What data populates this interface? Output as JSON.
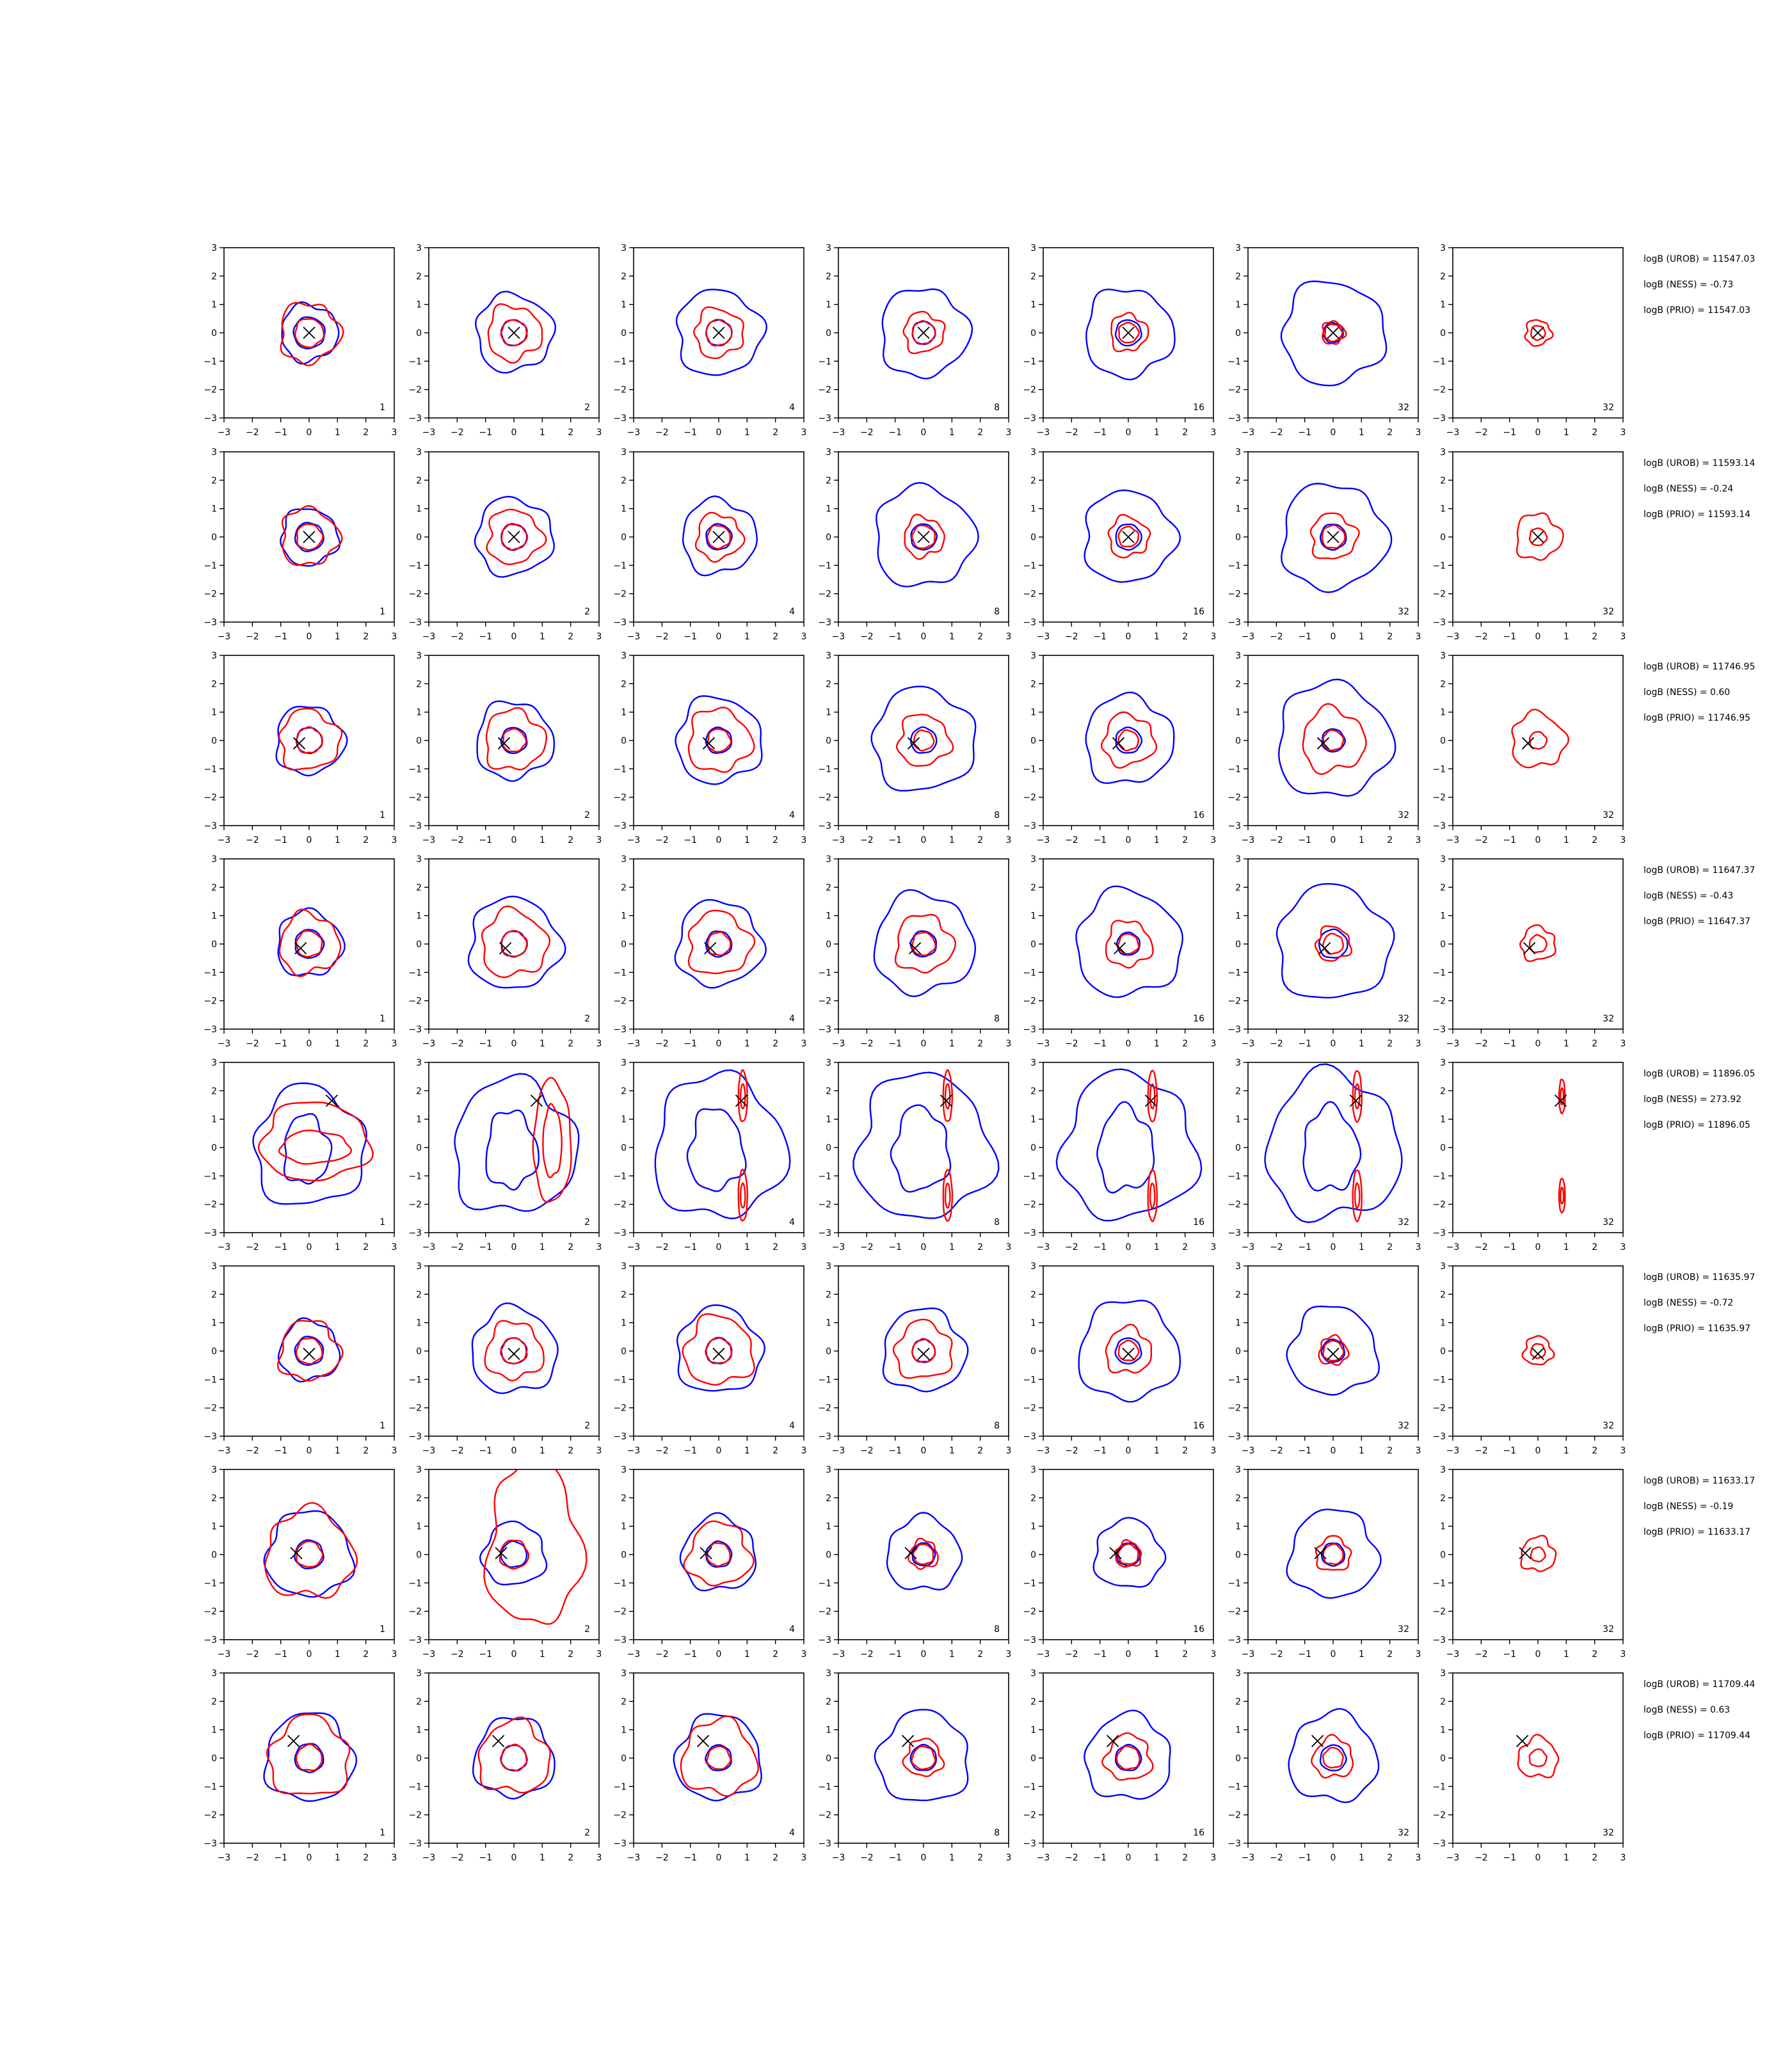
{
  "chart_data": {
    "type": "contour-grid",
    "xlim": [
      -3,
      3
    ],
    "ylim": [
      -3,
      3
    ],
    "ticks": [
      "−3",
      "−2",
      "−1",
      "0",
      "1",
      "2",
      "3"
    ],
    "tick_values": [
      -3,
      -2,
      -1,
      0,
      1,
      2,
      3
    ],
    "columns": [
      {
        "label": "1",
        "series": "blue-red"
      },
      {
        "label": "2",
        "series": "blue-red"
      },
      {
        "label": "4",
        "series": "blue-red"
      },
      {
        "label": "8",
        "series": "blue-red"
      },
      {
        "label": "16",
        "series": "blue-red"
      },
      {
        "label": "32",
        "series": "blue-red"
      },
      {
        "label": "32",
        "series": "red"
      }
    ],
    "colors": {
      "outer_contour": "#0000ff",
      "inner_contour": "#ff0000",
      "marker": "#000000"
    },
    "rows": [
      {
        "marker": [
          0,
          0
        ],
        "annotations": [
          "logB (UROB) = 11547.03",
          "logB (NESS) = -0.73",
          "logB (PRIO) = 11547.03"
        ],
        "cells": [
          {
            "blue": [
              1.0,
              0.55
            ],
            "red": [
              1.05,
              0.5
            ]
          },
          {
            "blue": [
              1.35,
              0.45
            ],
            "red": [
              0.95,
              0.45
            ]
          },
          {
            "blue": [
              1.5,
              0.45
            ],
            "red": [
              0.85,
              0.45
            ]
          },
          {
            "blue": [
              1.55,
              0.4
            ],
            "red": [
              0.7,
              0.4
            ]
          },
          {
            "blue": [
              1.55,
              0.45
            ],
            "red": [
              0.65,
              0.35
            ]
          },
          {
            "blue": [
              1.8,
              0.35
            ],
            "red": [
              0.4,
              0.3
            ]
          },
          {
            "red": [
              0.45,
              0.25
            ]
          }
        ]
      },
      {
        "marker": [
          0,
          0
        ],
        "annotations": [
          "logB (UROB) = 11593.14",
          "logB (NESS) = -0.24",
          "logB (PRIO) = 11593.14"
        ],
        "cells": [
          {
            "blue": [
              1.0,
              0.5
            ],
            "red": [
              1.0,
              0.45
            ]
          },
          {
            "blue": [
              1.35,
              0.45
            ],
            "red": [
              0.95,
              0.45
            ]
          },
          {
            "blue": [
              1.3,
              0.45
            ],
            "red": [
              0.8,
              0.4
            ]
          },
          {
            "blue": [
              1.75,
              0.45
            ],
            "red": [
              0.7,
              0.4
            ]
          },
          {
            "blue": [
              1.6,
              0.45
            ],
            "red": [
              0.7,
              0.35
            ]
          },
          {
            "blue": [
              1.85,
              0.45
            ],
            "red": [
              0.8,
              0.4
            ]
          },
          {
            "red": [
              0.8,
              0.3
            ]
          }
        ]
      },
      {
        "marker": [
          -0.35,
          -0.1
        ],
        "annotations": [
          "logB (UROB) = 11746.95",
          "logB (NESS) = 0.60",
          "logB (PRIO) = 11746.95"
        ],
        "cells": [
          {
            "blue": [
              1.2,
              0.45
            ],
            "red": [
              1.05,
              0.45
            ]
          },
          {
            "blue": [
              1.35,
              0.45
            ],
            "red": [
              1.05,
              0.4
            ]
          },
          {
            "blue": [
              1.5,
              0.45
            ],
            "red": [
              1.1,
              0.4
            ]
          },
          {
            "blue": [
              1.8,
              0.45
            ],
            "red": [
              0.9,
              0.35
            ]
          },
          {
            "blue": [
              1.55,
              0.45
            ],
            "red": [
              0.9,
              0.35
            ]
          },
          {
            "blue": [
              2.0,
              0.4
            ],
            "red": [
              1.1,
              0.35
            ]
          },
          {
            "red": [
              0.95,
              0.3
            ]
          }
        ]
      },
      {
        "marker": [
          -0.3,
          -0.15
        ],
        "annotations": [
          "logB (UROB) = 11647.37",
          "logB (NESS) = -0.43",
          "logB (PRIO) = 11647.37"
        ],
        "cells": [
          {
            "blue": [
              1.15,
              0.5
            ],
            "red": [
              1.05,
              0.45
            ]
          },
          {
            "blue": [
              1.6,
              0.45
            ],
            "red": [
              1.15,
              0.45
            ]
          },
          {
            "blue": [
              1.5,
              0.45
            ],
            "red": [
              1.1,
              0.4
            ]
          },
          {
            "blue": [
              1.75,
              0.45
            ],
            "red": [
              1.0,
              0.4
            ]
          },
          {
            "blue": [
              1.85,
              0.4
            ],
            "red": [
              0.8,
              0.35
            ]
          },
          {
            "blue": [
              2.0,
              0.5
            ],
            "red": [
              0.6,
              0.35
            ]
          },
          {
            "red": [
              0.6,
              0.3
            ]
          }
        ]
      },
      {
        "marker": [
          0.8,
          1.65
        ],
        "annotations": [
          "logB (UROB) = 11896.05",
          "logB (NESS) = 273.92",
          "logB (PRIO) = 11896.05"
        ],
        "cells": [
          {
            "blue": [
              2.1,
              0.4
            ],
            "red": [
              2.3,
              0.9
            ]
          },
          {
            "blue": [
              2.35,
              0.3
            ],
            "red": [
              1.2,
              0.6
            ]
          },
          {
            "blue": [
              2.5,
              0.3
            ],
            "red": [
              0.45,
              0.55
            ]
          },
          {
            "blue": [
              2.55,
              0.3
            ],
            "red": [
              0.45,
              0.5
            ]
          },
          {
            "blue": [
              2.55,
              0.3
            ],
            "red": [
              0.45,
              0.5
            ]
          },
          {
            "blue": [
              2.55,
              0.3
            ],
            "red": [
              0.45,
              0.5
            ]
          },
          {
            "red": [
              0.3,
              0.5
            ]
          }
        ]
      },
      {
        "marker": [
          0,
          -0.1
        ],
        "annotations": [
          "logB (UROB) = 11635.97",
          "logB (NESS) = -0.72",
          "logB (PRIO) = 11635.97"
        ],
        "cells": [
          {
            "blue": [
              1.05,
              0.5
            ],
            "red": [
              1.05,
              0.45
            ]
          },
          {
            "blue": [
              1.5,
              0.45
            ],
            "red": [
              1.0,
              0.45
            ]
          },
          {
            "blue": [
              1.5,
              0.45
            ],
            "red": [
              1.2,
              0.45
            ]
          },
          {
            "blue": [
              1.45,
              0.4
            ],
            "red": [
              1.0,
              0.4
            ]
          },
          {
            "blue": [
              1.75,
              0.45
            ],
            "red": [
              0.8,
              0.35
            ]
          },
          {
            "blue": [
              1.55,
              0.4
            ],
            "red": [
              0.5,
              0.35
            ]
          },
          {
            "red": [
              0.5,
              0.25
            ]
          }
        ]
      },
      {
        "marker": [
          -0.45,
          0.05
        ],
        "annotations": [
          "logB (UROB) = 11633.17",
          "logB (NESS) = -0.19",
          "logB (PRIO) = 11633.17"
        ],
        "cells": [
          {
            "blue": [
              1.5,
              0.5
            ],
            "red": [
              1.55,
              0.45
            ]
          },
          {
            "blue": [
              1.1,
              0.45
            ],
            "red": [
              1.9,
              0.5
            ]
          },
          {
            "blue": [
              1.3,
              0.45
            ],
            "red": [
              1.1,
              0.4
            ]
          },
          {
            "blue": [
              1.3,
              0.4
            ],
            "red": [
              0.5,
              0.35
            ]
          },
          {
            "blue": [
              1.2,
              0.4
            ],
            "red": [
              0.45,
              0.35
            ]
          },
          {
            "blue": [
              1.55,
              0.4
            ],
            "red": [
              0.6,
              0.35
            ]
          },
          {
            "red": [
              0.6,
              0.25
            ]
          }
        ]
      },
      {
        "marker": [
          -0.55,
          0.6
        ],
        "annotations": [
          "logB (UROB) = 11709.44",
          "logB (NESS) = 0.63",
          "logB (PRIO) = 11709.44"
        ],
        "cells": [
          {
            "blue": [
              1.55,
              0.5
            ],
            "red": [
              1.4,
              0.45
            ]
          },
          {
            "blue": [
              1.4,
              0.45
            ],
            "red": [
              1.25,
              0.45
            ]
          },
          {
            "blue": [
              1.5,
              0.45
            ],
            "red": [
              1.3,
              0.4
            ]
          },
          {
            "blue": [
              1.6,
              0.45
            ],
            "red": [
              0.65,
              0.4
            ]
          },
          {
            "blue": [
              1.5,
              0.45
            ],
            "red": [
              0.8,
              0.4
            ]
          },
          {
            "blue": [
              1.55,
              0.45
            ],
            "red": [
              0.7,
              0.35
            ]
          },
          {
            "red": [
              0.7,
              0.3
            ]
          }
        ]
      }
    ]
  }
}
